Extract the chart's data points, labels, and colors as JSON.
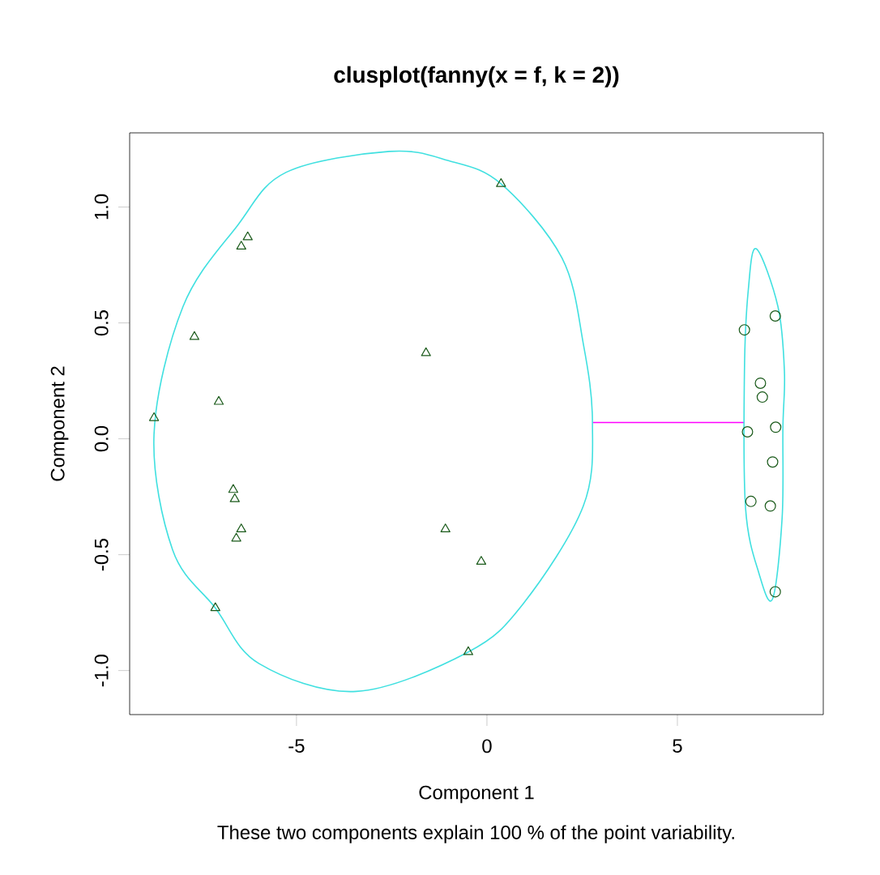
{
  "chart_data": {
    "type": "scatter",
    "title": "clusplot(fanny(x = f, k = 2))",
    "xlabel": "Component 1",
    "ylabel": "Component 2",
    "annotations": [
      "These two components explain 100 % of the point variability."
    ],
    "xlim": [
      -9.38,
      8.83
    ],
    "ylim": [
      -1.19,
      1.32
    ],
    "xticks": [
      -5,
      0,
      5
    ],
    "yticks": [
      {
        "value": -1.0,
        "label": "-1.0"
      },
      {
        "value": -0.5,
        "label": "-0.5"
      },
      {
        "value": 0.0,
        "label": "0.0"
      },
      {
        "value": 0.5,
        "label": "0.5"
      },
      {
        "value": 1.0,
        "label": "1.0"
      }
    ],
    "series": [
      {
        "marker": "triangle",
        "color": "#1a5a1a",
        "x": [
          0.37,
          -6.28,
          -6.45,
          -7.68,
          -1.6,
          -7.04,
          -8.74,
          -6.66,
          -6.62,
          -6.45,
          -6.58,
          -1.09,
          -0.15,
          -7.13,
          -0.49
        ],
        "values": [
          1.1,
          0.87,
          0.83,
          0.44,
          0.37,
          0.16,
          0.09,
          -0.22,
          -0.26,
          -0.39,
          -0.43,
          -0.39,
          -0.53,
          -0.73,
          -0.92
        ]
      },
      {
        "marker": "circle",
        "color": "#1a5a1a",
        "x": [
          7.57,
          6.76,
          7.18,
          7.23,
          6.84,
          7.58,
          7.5,
          6.93,
          7.44,
          7.57
        ],
        "values": [
          0.53,
          0.47,
          0.24,
          0.18,
          0.03,
          0.05,
          -0.1,
          -0.27,
          -0.29,
          -0.66
        ]
      },
      {
        "type": "line",
        "marker": "none",
        "color": "#ff00ff",
        "x": [
          2.77,
          6.76
        ],
        "values": [
          0.07,
          0.07
        ]
      }
    ]
  }
}
